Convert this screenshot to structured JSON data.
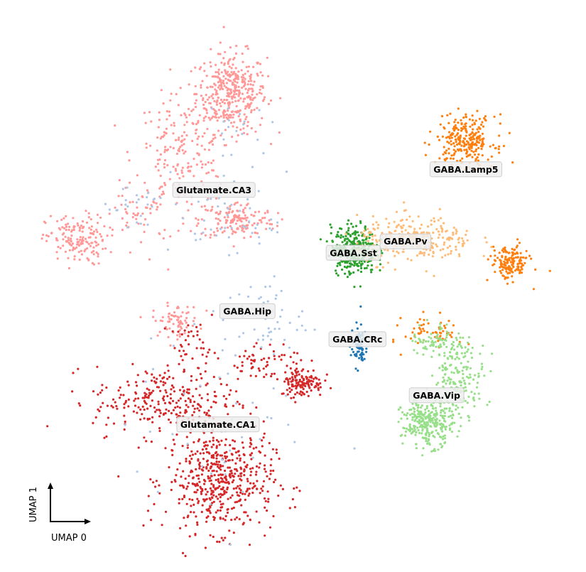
{
  "chart_data": {
    "type": "scatter",
    "title": "",
    "xlabel": "UMAP 0",
    "ylabel": "UMAP 1",
    "xlim": [
      0,
      100
    ],
    "ylim": [
      0,
      100
    ],
    "grid": false,
    "legend": "on-data",
    "clusters": [
      {
        "name": "Glutamate.CA3",
        "color": "#ff9896",
        "label_pos": [
          36.5,
          66.8
        ],
        "blobs": [
          {
            "cx": 39.5,
            "cy": 83.8,
            "sx": 3.0,
            "sy": 3.5,
            "n": 380
          },
          {
            "cx": 31.0,
            "cy": 73.0,
            "sx": 4.0,
            "sy": 5.0,
            "n": 200
          },
          {
            "cx": 40.5,
            "cy": 61.5,
            "sx": 3.2,
            "sy": 1.6,
            "n": 150
          },
          {
            "cx": 13.0,
            "cy": 58.0,
            "sx": 2.6,
            "sy": 2.2,
            "n": 160
          },
          {
            "cx": 24.0,
            "cy": 62.5,
            "sx": 3.0,
            "sy": 3.0,
            "n": 50
          },
          {
            "cx": 30.0,
            "cy": 44.0,
            "sx": 2.0,
            "sy": 1.4,
            "n": 70
          }
        ]
      },
      {
        "name": "Glutamate.CA1",
        "color": "#d62728",
        "label_pos": [
          37.2,
          25.8
        ],
        "blobs": [
          {
            "cx": 37.5,
            "cy": 16.0,
            "sx": 4.6,
            "sy": 4.5,
            "n": 520
          },
          {
            "cx": 28.0,
            "cy": 30.0,
            "sx": 6.0,
            "sy": 3.0,
            "n": 260
          },
          {
            "cx": 51.5,
            "cy": 33.2,
            "sx": 1.8,
            "sy": 1.3,
            "n": 130
          },
          {
            "cx": 44.0,
            "cy": 37.0,
            "sx": 3.5,
            "sy": 1.8,
            "n": 60
          },
          {
            "cx": 33.0,
            "cy": 39.5,
            "sx": 2.0,
            "sy": 2.0,
            "n": 40
          }
        ]
      },
      {
        "name": "GABA.Hip",
        "color": "#aec7e8",
        "label_pos": [
          42.2,
          45.6
        ],
        "blobs": [
          {
            "cx": 45.0,
            "cy": 44.5,
            "sx": 3.5,
            "sy": 3.5,
            "n": 60
          },
          {
            "cx": 38.0,
            "cy": 61.0,
            "sx": 4.5,
            "sy": 2.5,
            "n": 40
          },
          {
            "cx": 38.0,
            "cy": 25.0,
            "sx": 8.0,
            "sy": 8.0,
            "n": 40
          },
          {
            "cx": 23.0,
            "cy": 64.0,
            "sx": 2.5,
            "sy": 3.0,
            "n": 25
          },
          {
            "cx": 39.0,
            "cy": 75.0,
            "sx": 3.0,
            "sy": 5.0,
            "n": 25
          }
        ]
      },
      {
        "name": "GABA.CRc",
        "color": "#1f77b4",
        "label_pos": [
          61.0,
          40.7
        ],
        "blobs": [
          {
            "cx": 61.3,
            "cy": 39.6,
            "sx": 0.7,
            "sy": 1.9,
            "n": 75
          }
        ]
      },
      {
        "name": "GABA.Sst",
        "color": "#2ca02c",
        "label_pos": [
          60.3,
          55.8
        ],
        "blobs": [
          {
            "cx": 60.3,
            "cy": 56.3,
            "sx": 1.9,
            "sy": 2.1,
            "n": 320
          }
        ]
      },
      {
        "name": "GABA.Pv",
        "color": "#ffbb78",
        "label_pos": [
          69.2,
          57.8
        ],
        "blobs": [
          {
            "cx": 71.0,
            "cy": 58.0,
            "sx": 5.0,
            "sy": 2.0,
            "n": 280
          }
        ]
      },
      {
        "name": "GABA.Lamp5",
        "color": "#ff7f0e",
        "label_pos": [
          79.5,
          70.4
        ],
        "blobs": [
          {
            "cx": 79.5,
            "cy": 75.4,
            "sx": 2.5,
            "sy": 2.2,
            "n": 260
          },
          {
            "cx": 87.0,
            "cy": 54.0,
            "sx": 1.6,
            "sy": 1.5,
            "n": 160
          },
          {
            "cx": 74.0,
            "cy": 42.0,
            "sx": 2.5,
            "sy": 1.5,
            "n": 60
          }
        ]
      },
      {
        "name": "GABA.Vip",
        "color": "#98df8a",
        "label_pos": [
          74.5,
          30.9
        ],
        "blobs": [
          {
            "cx": 73.0,
            "cy": 26.0,
            "sx": 2.2,
            "sy": 2.0,
            "n": 300
          },
          {
            "cx": 78.5,
            "cy": 34.0,
            "sx": 2.2,
            "sy": 3.0,
            "n": 160
          },
          {
            "cx": 75.0,
            "cy": 40.5,
            "sx": 2.5,
            "sy": 1.5,
            "n": 80
          }
        ]
      }
    ]
  }
}
